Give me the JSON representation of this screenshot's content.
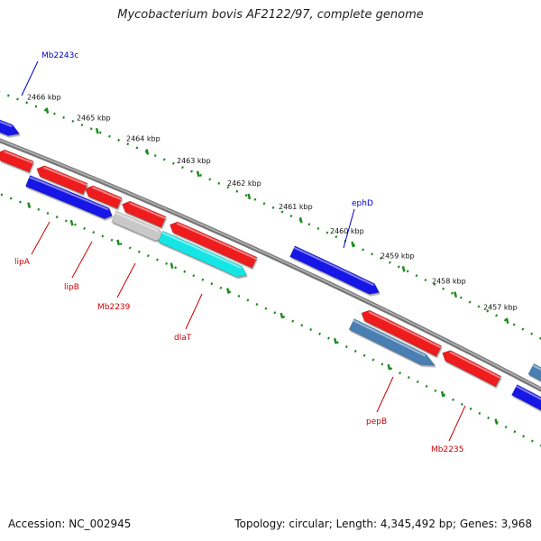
{
  "title": "Mycobacterium bovis AF2122/97, complete genome",
  "footer": {
    "accession": "Accession: NC_002945",
    "summary": "Topology: circular; Length: 4,345,492 bp; Genes: 3,968"
  },
  "colors": {
    "backbone": "#8c8c8c",
    "ruler": "#1e8a1e",
    "forward_label": "#cc0000",
    "reverse_label": "#0000cc",
    "red": "#ee1c1c",
    "blue": "#1414e6",
    "cyan": "#19e5e5",
    "gray": "#c8c8c8",
    "steelblue": "#4a7fb2"
  },
  "ruler": {
    "ticks": [
      "2466 kbp",
      "2465 kbp",
      "2464 kbp",
      "2463 kbp",
      "2462 kbp",
      "2461 kbp",
      "2460 kbp",
      "2459 kbp",
      "2458 kbp",
      "2457 kbp"
    ]
  },
  "gene_labels": [
    {
      "text": "Mb2243c",
      "strand": "reverse"
    },
    {
      "text": "ephD",
      "strand": "reverse"
    },
    {
      "text": "lipA",
      "strand": "forward"
    },
    {
      "text": "lipB",
      "strand": "forward"
    },
    {
      "text": "Mb2239",
      "strand": "forward"
    },
    {
      "text": "dlaT",
      "strand": "forward"
    },
    {
      "text": "pepB",
      "strand": "forward"
    },
    {
      "text": "Mb2235",
      "strand": "forward"
    }
  ]
}
